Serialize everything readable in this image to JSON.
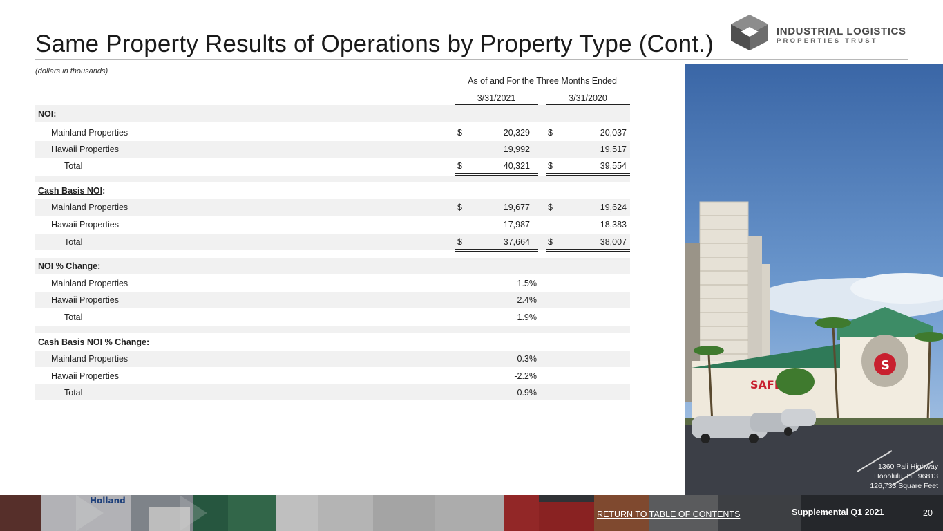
{
  "header": {
    "title": "Same Property Results of Operations by Property Type (Cont.)",
    "subtitle": "(dollars in thousands)",
    "logo_line1": "INDUSTRIAL LOGISTICS",
    "logo_line2": "PROPERTIES TRUST"
  },
  "table": {
    "period_header": "As of and For the Three Months Ended",
    "col1": "3/31/2021",
    "col2": "3/31/2020",
    "currency_symbol": "$",
    "noi": {
      "header": "NOI",
      "mainland": {
        "label": "Mainland Properties",
        "v1": "20,329",
        "v2": "20,037"
      },
      "hawaii": {
        "label": "Hawaii Properties",
        "v1": "19,992",
        "v2": "19,517"
      },
      "total": {
        "label": "Total",
        "v1": "40,321",
        "v2": "39,554"
      }
    },
    "cash_noi": {
      "header": "Cash Basis NOI",
      "mainland": {
        "label": "Mainland Properties",
        "v1": "19,677",
        "v2": "19,624"
      },
      "hawaii": {
        "label": "Hawaii Properties",
        "v1": "17,987",
        "v2": "18,383"
      },
      "total": {
        "label": "Total",
        "v1": "37,664",
        "v2": "38,007"
      }
    },
    "noi_change": {
      "header": "NOI % Change",
      "mainland": {
        "label": "Mainland Properties",
        "pct": "1.5%"
      },
      "hawaii": {
        "label": "Hawaii Properties",
        "pct": "2.4%"
      },
      "total": {
        "label": "Total",
        "pct": "1.9%"
      }
    },
    "cash_noi_change": {
      "header": "Cash Basis NOI % Change",
      "mainland": {
        "label": "Mainland Properties",
        "pct": "0.3%"
      },
      "hawaii": {
        "label": "Hawaii Properties",
        "pct": "-2.2%"
      },
      "total": {
        "label": "Total",
        "pct": "-0.9%"
      }
    }
  },
  "photo": {
    "caption_line1": "1360 Pali Highway",
    "caption_line2": "Honolulu, HI, 96813",
    "caption_line3": "126,733 Square Feet",
    "sign_text": "SAFE"
  },
  "footer": {
    "toc_link": "RETURN TO TABLE OF CONTENTS",
    "supplemental": "Supplemental Q1 2021",
    "page_number": "20",
    "truck_text": "Holland"
  },
  "colors": {
    "title": "#1a1a1a",
    "logo_gray": "#4a4a4a",
    "row_shade": "#f1f1f1",
    "sky": "#3f6fae"
  }
}
